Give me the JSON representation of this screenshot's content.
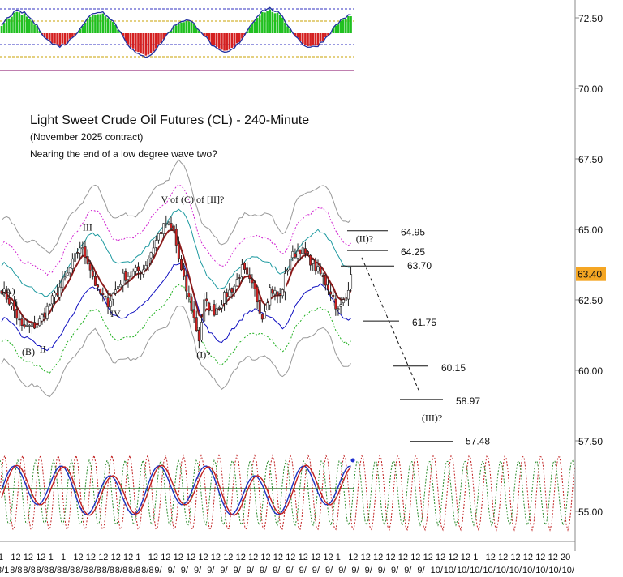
{
  "chart_data": {
    "type": "candlestick",
    "title": "Light Sweet Crude Oil Futures (CL) - 240-Minute",
    "subtitle": "(November 2025 contract)",
    "note": "Nearing the end of a low degree wave two?",
    "y_axis": {
      "range": [
        53.6,
        73.2
      ],
      "ticks": [
        "72.50",
        "70.00",
        "67.50",
        "65.00",
        "62.50",
        "60.00",
        "57.50",
        "55.00"
      ],
      "tick_values": [
        72.5,
        70.0,
        67.5,
        65.0,
        62.5,
        60.0,
        57.5,
        55.0
      ]
    },
    "last_price": {
      "label": "63.40",
      "value": 63.4,
      "color": "#f5a623"
    },
    "x_axis": {
      "tick_labels": [
        "8/1",
        "8/8",
        "8/8",
        "8/8",
        "8/8",
        "8/8",
        "8/8",
        "8/8",
        "8/8",
        "8/8",
        "8/8",
        "8/8",
        "9/",
        "9/",
        "9/",
        "9/",
        "9/",
        "9/",
        "9/",
        "9/",
        "9/",
        "9/",
        "9/",
        "9/",
        "9/",
        "9/",
        "9/",
        "9/",
        "9/",
        "9/",
        "9/",
        "9/",
        "9/",
        "10/",
        "10/",
        "10/",
        "10/",
        "10/",
        "10/",
        "10/",
        "10/",
        "10/",
        "10/",
        "10/"
      ],
      "upper_tick_labels": [
        "1",
        "12",
        "12",
        "12",
        "1",
        "1",
        "12",
        "12",
        "12",
        "12",
        "12",
        "1",
        "12",
        "12",
        "12",
        "12",
        "12",
        "12",
        "12",
        "12",
        "12",
        "12",
        "12",
        "12",
        "12",
        "12",
        "12",
        "1",
        "12",
        "12",
        "12",
        "12",
        "12",
        "12",
        "12",
        "12",
        "12",
        "12",
        "1",
        "12",
        "12",
        "12",
        "12",
        "12",
        "12",
        "20"
      ]
    },
    "wave_labels": [
      {
        "text": "(A)",
        "x_bar": 0,
        "price": 62.7
      },
      {
        "text": "I",
        "x_bar": 5,
        "price": 62.3
      },
      {
        "text": "(B)",
        "x_bar": 8,
        "price": 60.55
      },
      {
        "text": "II",
        "x_bar": 15,
        "price": 60.65
      },
      {
        "text": "III",
        "x_bar": 32,
        "price": 64.95
      },
      {
        "text": "IV",
        "x_bar": 43,
        "price": 61.9
      },
      {
        "text": "V of (C) of [II]?",
        "x_bar": 63,
        "price": 65.95
      },
      {
        "text": "(I)?",
        "x_bar": 77,
        "price": 60.45
      },
      {
        "text": "(II)?",
        "x_bar": 140,
        "price": 64.55
      },
      {
        "text": "(III)?",
        "x_bar": 166,
        "price": 58.2
      }
    ],
    "target_levels": [
      {
        "label": "64.95",
        "value": 64.95
      },
      {
        "label": "64.25",
        "value": 64.25
      },
      {
        "label": "63.70",
        "value": 63.7
      },
      {
        "label": "61.75",
        "value": 61.75
      },
      {
        "label": "60.15",
        "value": 60.15
      },
      {
        "label": "58.97",
        "value": 58.97
      },
      {
        "label": "57.48",
        "value": 57.48
      }
    ],
    "projection": {
      "from_price": 64.0,
      "to_price": 59.3
    },
    "price_anchors": [
      [
        0,
        62.9
      ],
      [
        4,
        62.3
      ],
      [
        8,
        61.5
      ],
      [
        14,
        61.6
      ],
      [
        20,
        62.5
      ],
      [
        26,
        63.4
      ],
      [
        31,
        64.4
      ],
      [
        34,
        63.9
      ],
      [
        38,
        62.8
      ],
      [
        42,
        62.4
      ],
      [
        48,
        63.3
      ],
      [
        56,
        63.6
      ],
      [
        62,
        64.8
      ],
      [
        65,
        65.2
      ],
      [
        68,
        64.9
      ],
      [
        71,
        63.5
      ],
      [
        75,
        62.2
      ],
      [
        78,
        61.1
      ],
      [
        80,
        62.4
      ],
      [
        84,
        62.1
      ],
      [
        88,
        62.6
      ],
      [
        92,
        63.0
      ],
      [
        95,
        63.6
      ],
      [
        100,
        62.8
      ],
      [
        103,
        61.9
      ],
      [
        106,
        62.9
      ],
      [
        110,
        62.6
      ],
      [
        114,
        64.0
      ],
      [
        118,
        64.3
      ],
      [
        122,
        63.9
      ],
      [
        126,
        63.4
      ],
      [
        130,
        62.8
      ],
      [
        133,
        62.1
      ],
      [
        136,
        62.6
      ],
      [
        138,
        63.4
      ]
    ],
    "grid": false,
    "legend": "none",
    "colors": {
      "up_candle": "#ffffff",
      "down_candle": "#d42020",
      "ma_fast": "#8b1a1a",
      "ma_mid": "#1e9aa0",
      "ma_slow": "#1010c0",
      "band_pink": "#d020d0",
      "band_green": "#20b020",
      "band_gray": "#999999",
      "hist_pos": "#20c020",
      "hist_neg": "#d42020",
      "hist_line": "#2030a0"
    }
  }
}
